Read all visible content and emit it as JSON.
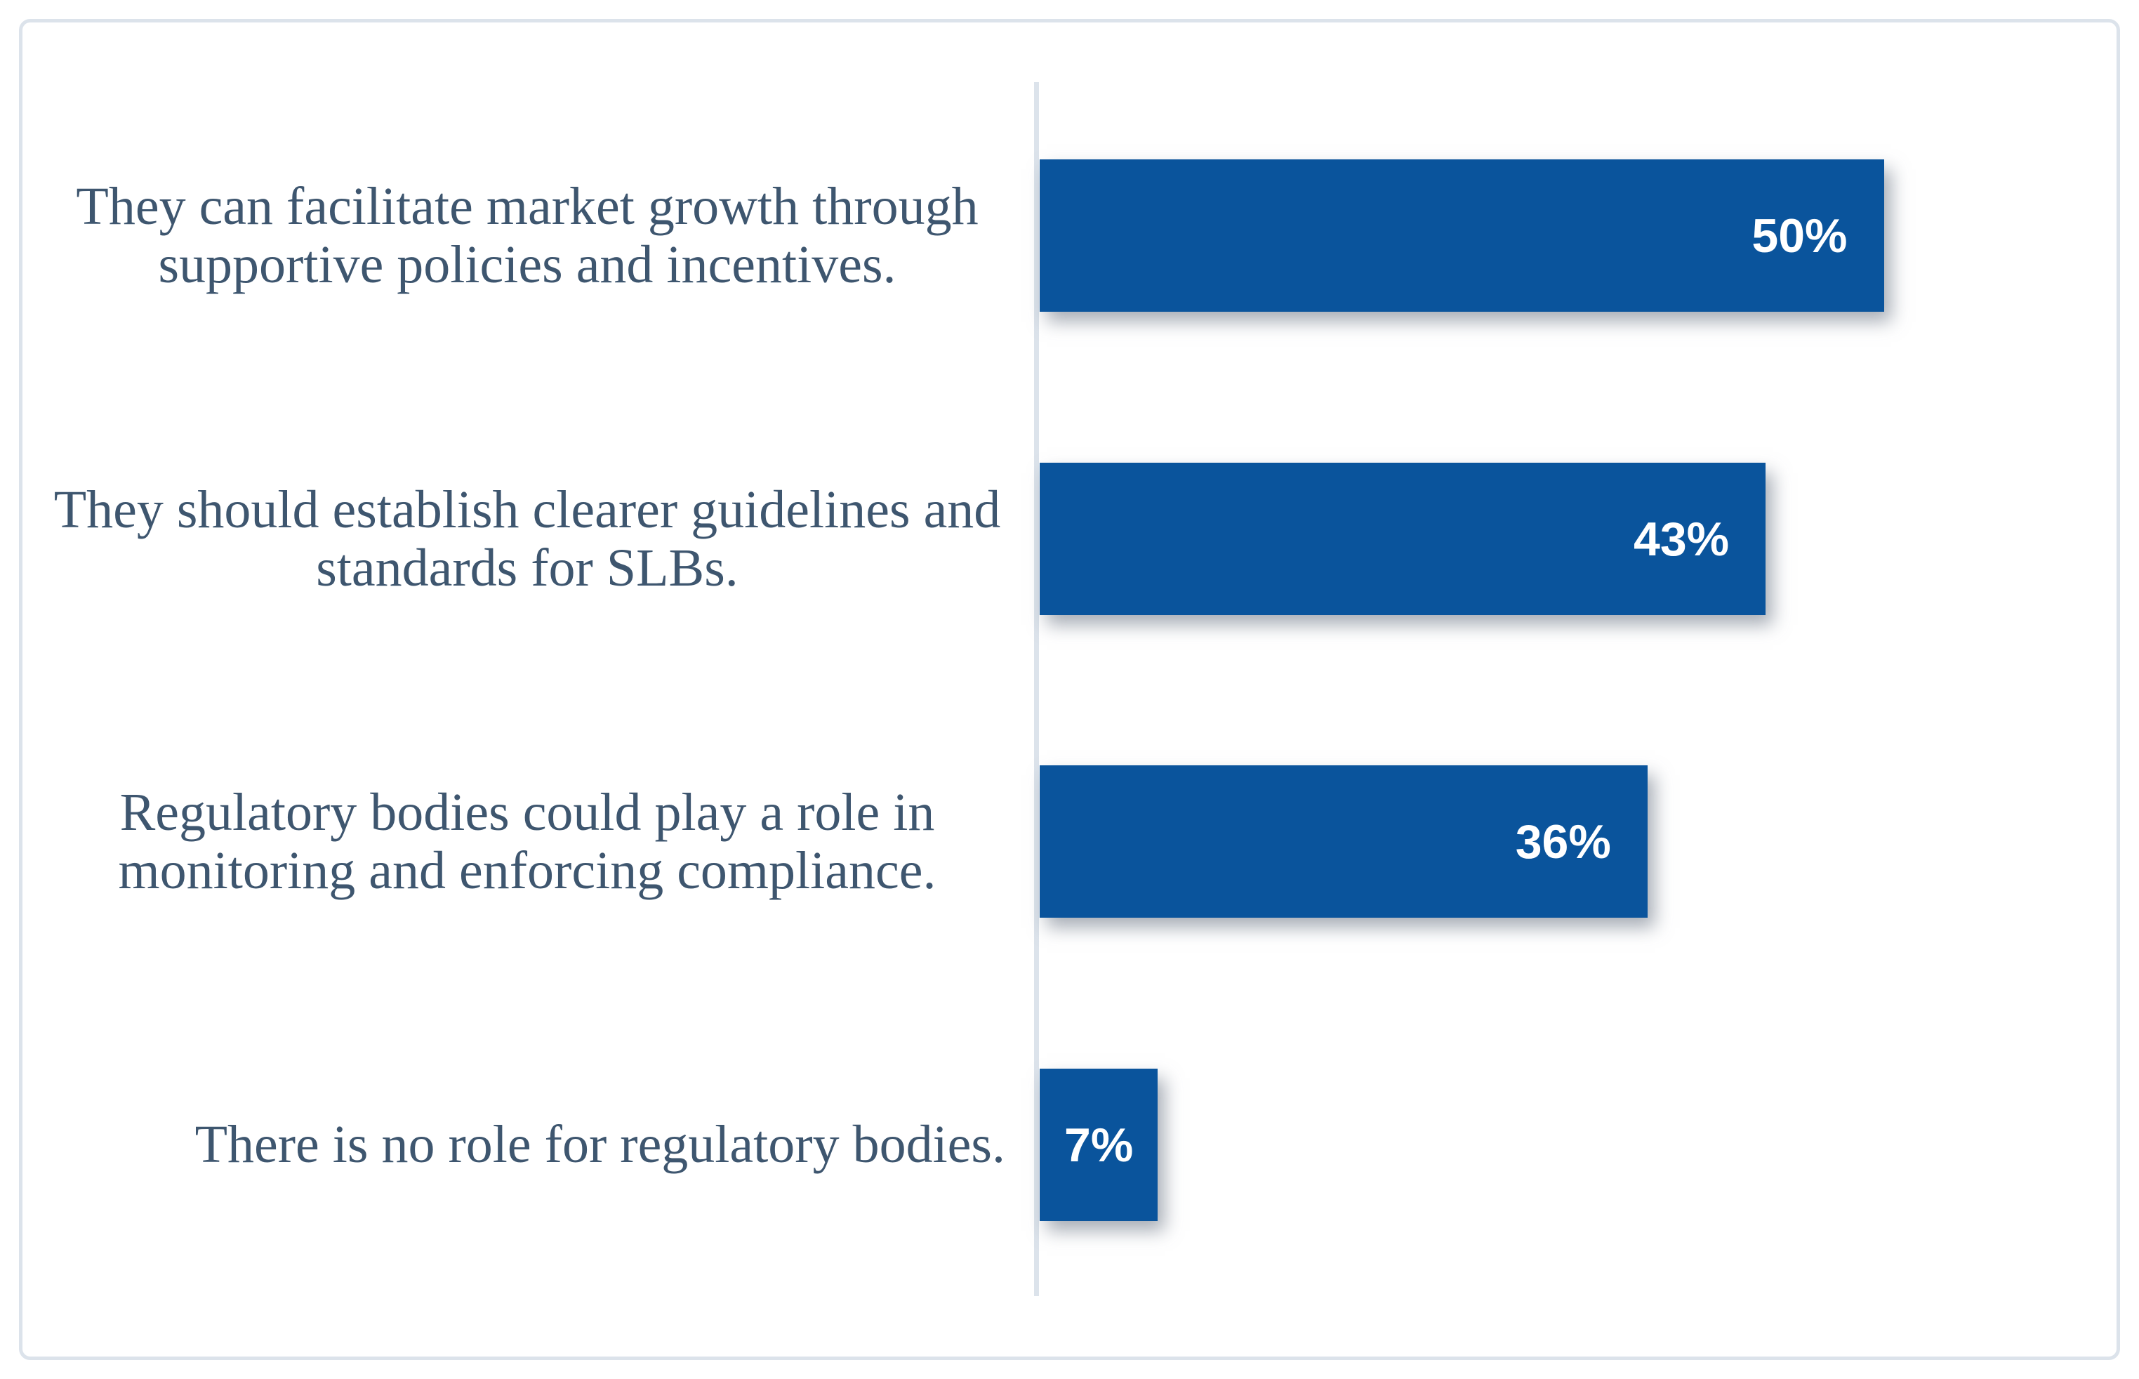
{
  "chart_data": {
    "type": "bar",
    "orientation": "horizontal",
    "title": "",
    "xlabel": "",
    "ylabel": "",
    "categories": [
      "They can facilitate market growth through supportive policies and incentives.",
      "They should establish clearer guidelines and standards for SLBs.",
      "Regulatory bodies could play a role in monitoring and enforcing compliance.",
      "There is no role for regulatory bodies."
    ],
    "values": [
      50,
      43,
      36,
      7
    ],
    "value_labels": [
      "50%",
      "43%",
      "36%",
      "7%"
    ],
    "value_label_position": "inside-end",
    "xlim": [
      0,
      50
    ],
    "grid": false,
    "legend": false
  },
  "colors": {
    "bar_fill": "#0a549c",
    "value_text": "#ffffff",
    "category_text": "#3e566f",
    "axis_line": "#dce3eb",
    "frame_border": "#dce3eb",
    "background": "#ffffff"
  }
}
